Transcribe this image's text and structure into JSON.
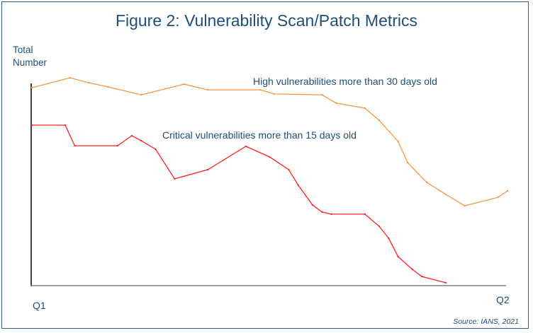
{
  "chart_data": {
    "type": "line",
    "title": "Figure 2: Vulnerability Scan/Patch Metrics",
    "ylabel": "Total Number",
    "xlabel": "",
    "x_tick_labels": [
      "Q1",
      "Q2"
    ],
    "xlim": [
      0,
      1
    ],
    "ylim": [
      0,
      100
    ],
    "grid": false,
    "source": "Source: IANS, 2021",
    "series": [
      {
        "name": "High vulnerabilities more than 30 days old",
        "color": "#f79646",
        "x": [
          0.0,
          0.08,
          0.12,
          0.16,
          0.23,
          0.32,
          0.37,
          0.48,
          0.51,
          0.61,
          0.64,
          0.7,
          0.73,
          0.77,
          0.79,
          0.83,
          0.87,
          0.91,
          0.98,
          1.0
        ],
        "y": [
          95.2,
          100,
          97.6,
          95.6,
          91.8,
          96.9,
          94.2,
          94.2,
          92.2,
          91.8,
          87.8,
          85.4,
          79.6,
          69.4,
          59.2,
          49.7,
          43.9,
          38.4,
          42.5,
          45.6
        ]
      },
      {
        "name": "Critical vulnerabilities more than 15 days old",
        "color": "#ff2020",
        "x": [
          0.0,
          0.07,
          0.09,
          0.18,
          0.21,
          0.23,
          0.26,
          0.3,
          0.37,
          0.45,
          0.5,
          0.54,
          0.56,
          0.59,
          0.61,
          0.63,
          0.7,
          0.73,
          0.75,
          0.77,
          0.8,
          0.82,
          0.87
        ],
        "y": [
          77.2,
          77.2,
          67.3,
          67.3,
          72.1,
          69.7,
          65.6,
          51.4,
          55.8,
          67.0,
          61.9,
          55.8,
          48.3,
          38.8,
          35.4,
          34.4,
          34.4,
          28.6,
          22.8,
          13.9,
          7.8,
          4.4,
          1.4
        ]
      }
    ]
  }
}
